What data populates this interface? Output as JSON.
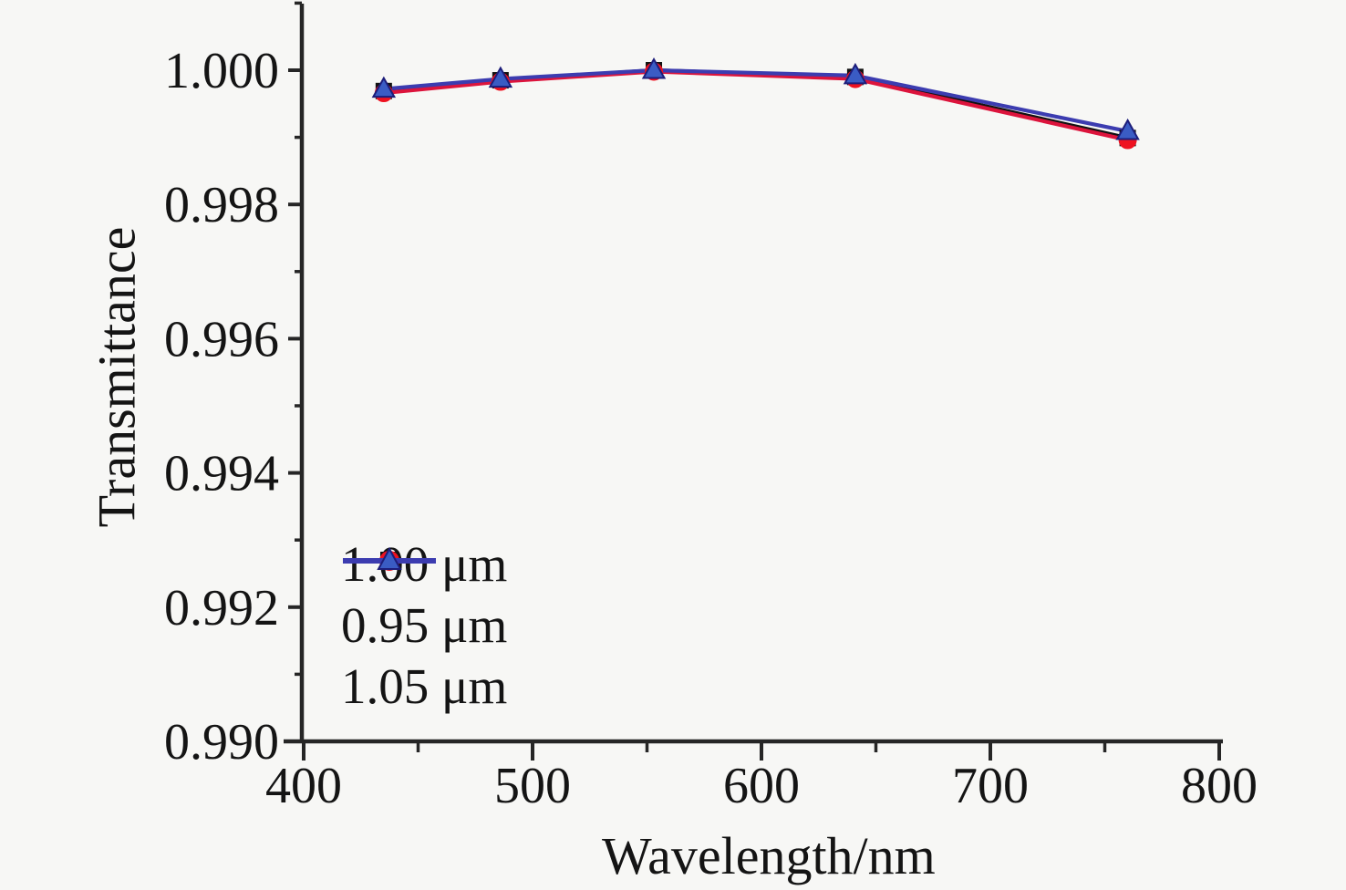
{
  "figure": {
    "background": "#f7f7f5",
    "axis_color": "#262626"
  },
  "chart_data": {
    "type": "line",
    "title": "",
    "xlabel": "Wavelength/nm",
    "ylabel": "Transmittance",
    "xlim": [
      391,
      802
    ],
    "ylim": [
      0.99,
      1.001
    ],
    "grid": false,
    "legend_position": "lower-left",
    "x": [
      435,
      486,
      553,
      641,
      760
    ],
    "series": [
      {
        "name": "1.00 μm",
        "marker": "square",
        "color": "#121212",
        "marker_color": "#121212",
        "values": [
          0.99969,
          0.99985,
          1.0,
          0.9999,
          0.99899
        ]
      },
      {
        "name": "0.95 μm",
        "marker": "circle",
        "color": "#dc143c",
        "marker_color": "#ee1220",
        "values": [
          0.99966,
          0.99983,
          0.99998,
          0.99987,
          0.99896
        ]
      },
      {
        "name": "1.05 μm",
        "marker": "triangle",
        "color": "#3c3cb0",
        "marker_color": "#3a5cc4",
        "marker_edge": "#1d1d7a",
        "values": [
          0.99972,
          0.99987,
          1.0,
          0.99992,
          0.99909
        ]
      }
    ],
    "x_ticks": {
      "major": [
        400,
        500,
        600,
        700,
        800
      ],
      "minor": [
        450,
        550,
        650,
        750
      ],
      "labels": [
        "400",
        "500",
        "600",
        "700",
        "800"
      ]
    },
    "y_ticks": {
      "major": [
        0.99,
        0.992,
        0.994,
        0.996,
        0.998,
        1.0
      ],
      "minor": [
        0.991,
        0.993,
        0.995,
        0.997,
        0.999,
        1.001
      ],
      "labels": [
        "0.990",
        "0.992",
        "0.994",
        "0.996",
        "0.998",
        "1.000"
      ]
    }
  }
}
